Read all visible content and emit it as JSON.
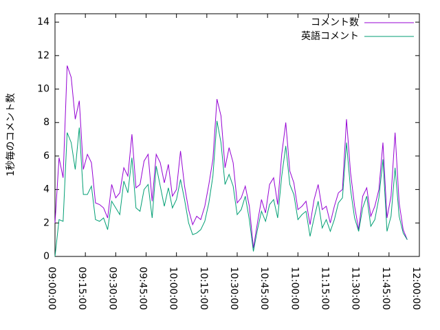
{
  "chart_data": {
    "type": "line",
    "y_label": "1秒毎のコメント数",
    "x": [
      "09:00:00",
      "09:02:00",
      "09:04:00",
      "09:06:00",
      "09:08:00",
      "09:10:00",
      "09:12:00",
      "09:14:00",
      "09:16:00",
      "09:18:00",
      "09:20:00",
      "09:22:00",
      "09:24:00",
      "09:26:00",
      "09:28:00",
      "09:30:00",
      "09:32:00",
      "09:34:00",
      "09:36:00",
      "09:38:00",
      "09:40:00",
      "09:42:00",
      "09:44:00",
      "09:46:00",
      "09:48:00",
      "09:50:00",
      "09:52:00",
      "09:54:00",
      "09:56:00",
      "09:58:00",
      "10:00:00",
      "10:02:00",
      "10:04:00",
      "10:06:00",
      "10:08:00",
      "10:10:00",
      "10:12:00",
      "10:14:00",
      "10:16:00",
      "10:18:00",
      "10:20:00",
      "10:22:00",
      "10:24:00",
      "10:26:00",
      "10:28:00",
      "10:30:00",
      "10:32:00",
      "10:34:00",
      "10:36:00",
      "10:38:00",
      "10:40:00",
      "10:42:00",
      "10:44:00",
      "10:46:00",
      "10:48:00",
      "10:50:00",
      "10:52:00",
      "10:54:00",
      "10:56:00",
      "10:58:00",
      "11:00:00",
      "11:02:00",
      "11:04:00",
      "11:06:00",
      "11:08:00",
      "11:10:00",
      "11:12:00",
      "11:14:00",
      "11:16:00",
      "11:18:00",
      "11:20:00",
      "11:22:00",
      "11:24:00",
      "11:26:00",
      "11:28:00",
      "11:30:00",
      "11:32:00",
      "11:34:00",
      "11:36:00",
      "11:38:00",
      "11:40:00",
      "11:42:00",
      "11:44:00",
      "11:46:00",
      "11:48:00",
      "11:50:00",
      "11:52:00",
      "11:54:00"
    ],
    "series": [
      {
        "name": "コメント数",
        "color": "#9400d3",
        "values": [
          2.0,
          5.9,
          4.7,
          11.4,
          10.7,
          8.2,
          9.3,
          5.2,
          6.1,
          5.6,
          3.2,
          3.1,
          2.9,
          2.3,
          4.3,
          3.5,
          3.8,
          5.3,
          4.8,
          7.3,
          4.1,
          4.3,
          5.7,
          6.1,
          3.3,
          6.1,
          5.6,
          4.4,
          5.5,
          3.6,
          4.0,
          6.3,
          4.2,
          2.8,
          1.9,
          2.4,
          2.2,
          3.0,
          4.3,
          5.8,
          9.4,
          8.4,
          5.3,
          6.5,
          5.6,
          3.2,
          3.5,
          4.2,
          3.0,
          0.5,
          2.0,
          3.4,
          2.6,
          4.3,
          4.7,
          3.1,
          6.1,
          8.0,
          5.1,
          4.4,
          2.8,
          3.0,
          3.3,
          1.9,
          3.4,
          4.3,
          2.8,
          3.0,
          2.0,
          3.0,
          3.8,
          4.0,
          8.2,
          5.0,
          3.0,
          1.6,
          3.6,
          4.1,
          2.4,
          3.0,
          4.0,
          6.8,
          2.3,
          3.6,
          7.4,
          3.2,
          1.6,
          1.0
        ]
      },
      {
        "name": "英語コメント",
        "color": "#009e73",
        "values": [
          0.0,
          2.2,
          2.1,
          7.4,
          6.8,
          5.2,
          7.7,
          3.7,
          3.7,
          4.2,
          2.2,
          2.1,
          2.3,
          1.6,
          3.3,
          2.9,
          2.5,
          4.5,
          3.8,
          5.9,
          2.9,
          2.7,
          4.0,
          4.3,
          2.3,
          5.4,
          4.2,
          3.0,
          4.1,
          2.9,
          3.4,
          4.6,
          3.4,
          2.0,
          1.3,
          1.4,
          1.6,
          2.1,
          3.2,
          4.8,
          8.1,
          6.8,
          4.3,
          4.9,
          4.2,
          2.5,
          2.8,
          3.6,
          2.2,
          0.3,
          1.6,
          2.7,
          2.1,
          3.1,
          3.4,
          2.3,
          4.8,
          6.6,
          4.3,
          3.7,
          2.2,
          2.5,
          2.7,
          1.2,
          2.3,
          3.3,
          1.7,
          2.2,
          1.5,
          2.2,
          3.2,
          3.5,
          6.8,
          4.0,
          2.3,
          1.5,
          2.9,
          3.6,
          1.8,
          2.2,
          3.5,
          5.8,
          1.5,
          2.4,
          5.3,
          2.4,
          1.4,
          1.0
        ]
      }
    ],
    "xlim": [
      "09:00:00",
      "12:00:00"
    ],
    "xticks": [
      "09:00:00",
      "09:15:00",
      "09:30:00",
      "09:45:00",
      "10:00:00",
      "10:15:00",
      "10:30:00",
      "10:45:00",
      "11:00:00",
      "11:15:00",
      "11:30:00",
      "11:45:00",
      "12:00:00"
    ],
    "ylim": [
      0,
      14.5
    ],
    "yticks": [
      0,
      2,
      4,
      6,
      8,
      10,
      12,
      14
    ],
    "legend": "top-right"
  }
}
